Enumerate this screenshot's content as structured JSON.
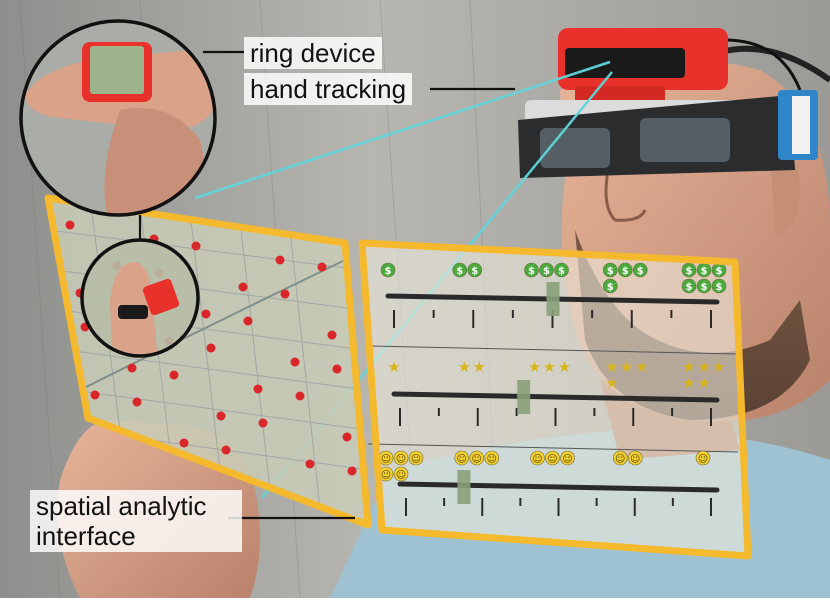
{
  "labels": {
    "ring_device": "ring device",
    "hand_tracking": "hand tracking",
    "spatial_interface": "spatial analytic interface"
  },
  "colors": {
    "frame": "#f5b92e",
    "beam": "#5fd7dc",
    "headset_red": "#e8312b",
    "headset_blue": "#2f86c8",
    "dollar_green": "#4caa3c",
    "star_yellow": "#d9b51c",
    "smiley_yellow": "#f2cf2e",
    "map_dot": "#d9262b",
    "slider_handle": "#8aa07a",
    "track": "#2a2a2a"
  },
  "icons": {
    "row1": "dollar-coin-icon",
    "row2": "star-icon",
    "row3": "smiley-icon"
  },
  "glyphs": {
    "dollar": "$",
    "star": "★",
    "smiley": "☺"
  },
  "sliders": [
    {
      "icon": "dollar",
      "groups": [
        1,
        2,
        3,
        4,
        6
      ],
      "handle_position": 0.5
    },
    {
      "icon": "star",
      "groups": [
        1,
        2,
        3,
        4,
        5
      ],
      "handle_position": 0.4
    },
    {
      "icon": "smiley",
      "groups": [
        5,
        3,
        3,
        2,
        1
      ],
      "handle_position": 0.2
    }
  ]
}
